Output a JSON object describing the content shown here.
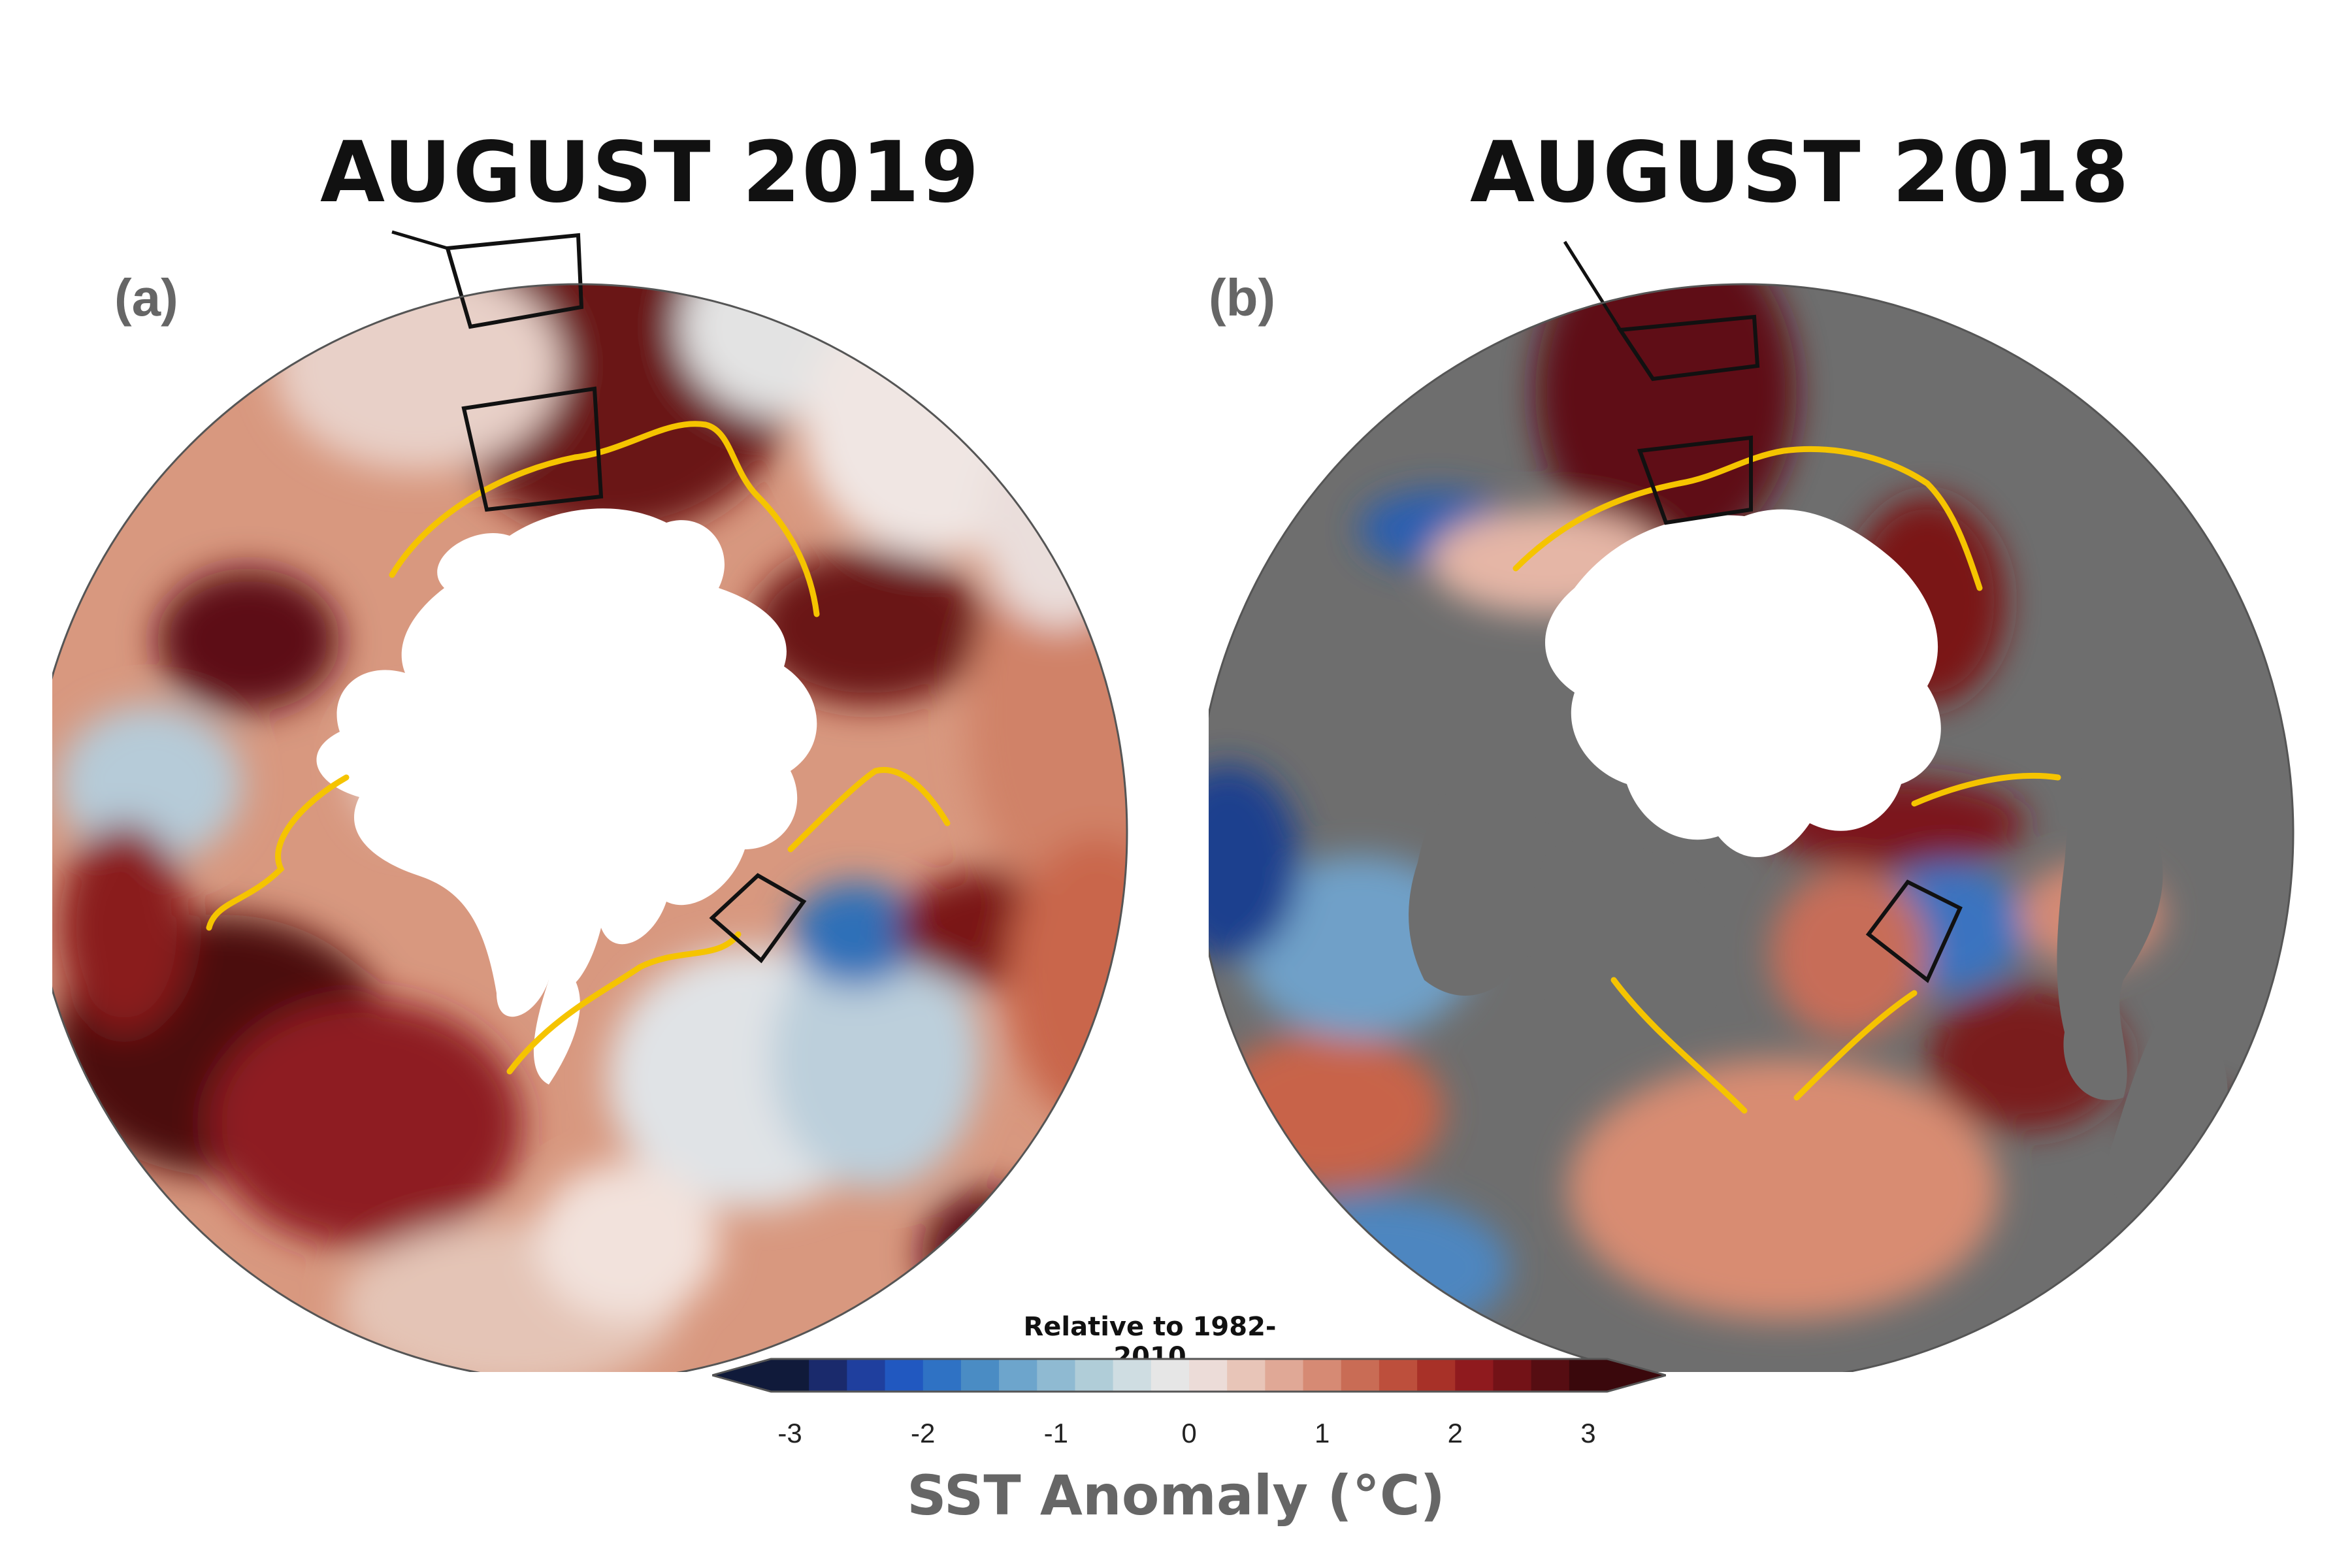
{
  "panels": [
    {
      "title": "AUGUST 2019",
      "label": "(a)",
      "land": false
    },
    {
      "title": "AUGUST 2018",
      "label": "(b)",
      "land": true
    }
  ],
  "colorbar": {
    "title": "Relative to 1982-2010",
    "label": "SST Anomaly (°C)",
    "ticks": [
      "-3",
      "-2",
      "-1",
      "0",
      "1",
      "2",
      "3"
    ],
    "colors": [
      "#101a3a",
      "#1a2a6c",
      "#1f3f9e",
      "#2158c0",
      "#2f72c4",
      "#4a8cc4",
      "#6da5cc",
      "#8fbad2",
      "#b0cdd8",
      "#cfdde2",
      "#e6e6e6",
      "#ecdcd8",
      "#e8c5b8",
      "#e0a896",
      "#d68a74",
      "#c96c55",
      "#bd4f3c",
      "#a83128",
      "#8f1a1e",
      "#731217",
      "#560d12",
      "#3a080c"
    ]
  },
  "colors": {
    "ice": "#ffffff",
    "ice_edge": "#f5c400",
    "land": "#6e6e6e",
    "ocean_base": "#d9937b",
    "box": "#111111"
  }
}
